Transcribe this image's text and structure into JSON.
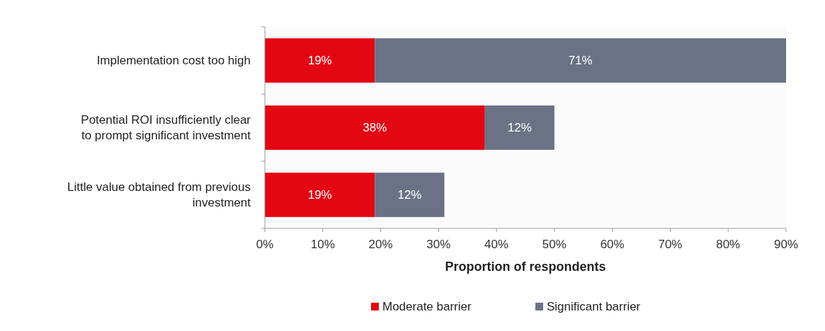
{
  "chart_data": {
    "type": "bar",
    "orientation": "horizontal",
    "stacked": true,
    "categories": [
      "Implementation cost too high",
      "Potential ROI insufficiently clear to prompt significant investment",
      "Little value obtained from previous investment"
    ],
    "series": [
      {
        "name": "Moderate barrier",
        "color": "#e30613",
        "values": [
          19,
          38,
          19
        ]
      },
      {
        "name": "Significant barrier",
        "color": "#6b7286",
        "values": [
          71,
          12,
          12
        ]
      }
    ],
    "xlim": [
      0,
      90
    ],
    "xticks": [
      {
        "value": 0,
        "label": "0%"
      },
      {
        "value": 10,
        "label": "10%"
      },
      {
        "value": 20,
        "label": "20%"
      },
      {
        "value": 30,
        "label": "30%"
      },
      {
        "value": 40,
        "label": "40%"
      },
      {
        "value": 50,
        "label": "50%"
      },
      {
        "value": 60,
        "label": "60%"
      },
      {
        "value": 70,
        "label": "70%"
      },
      {
        "value": 80,
        "label": "80%"
      },
      {
        "value": 90,
        "label": "90%"
      }
    ],
    "xlabel": "Proportion of respondents",
    "value_labels": [
      [
        "19%",
        "38%",
        "19%"
      ],
      [
        "71%",
        "12%",
        "12%"
      ]
    ],
    "legend": "bottom",
    "grid": false
  }
}
